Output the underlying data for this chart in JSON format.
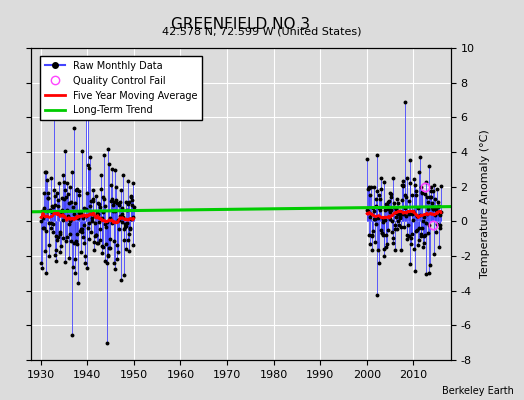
{
  "title": "GREENFIELD NO 3",
  "subtitle": "42.578 N, 72.599 W (United States)",
  "credit": "Berkeley Earth",
  "ylabel": "Temperature Anomaly (°C)",
  "xlim": [
    1928,
    2018
  ],
  "ylim": [
    -8,
    10
  ],
  "yticks": [
    -8,
    -6,
    -4,
    -2,
    0,
    2,
    4,
    6,
    8,
    10
  ],
  "xticks": [
    1930,
    1940,
    1950,
    1960,
    1970,
    1980,
    1990,
    2000,
    2010
  ],
  "bg_color": "#dcdcdc",
  "grid_color": "white",
  "stem_color": "#4444ff",
  "dot_color": "black",
  "qc_color": "#ff44ff",
  "moving_avg_color": "red",
  "trend_color": "#00cc00",
  "period1_start": 1930,
  "period1_end": 1950,
  "period2_start": 2000,
  "period2_end": 2016,
  "trend_x": [
    1928,
    2018
  ],
  "trend_y": [
    0.55,
    0.85
  ],
  "qc_fail_years": [
    2012.5,
    2014.2
  ],
  "qc_fail_vals": [
    2.0,
    -0.2
  ]
}
